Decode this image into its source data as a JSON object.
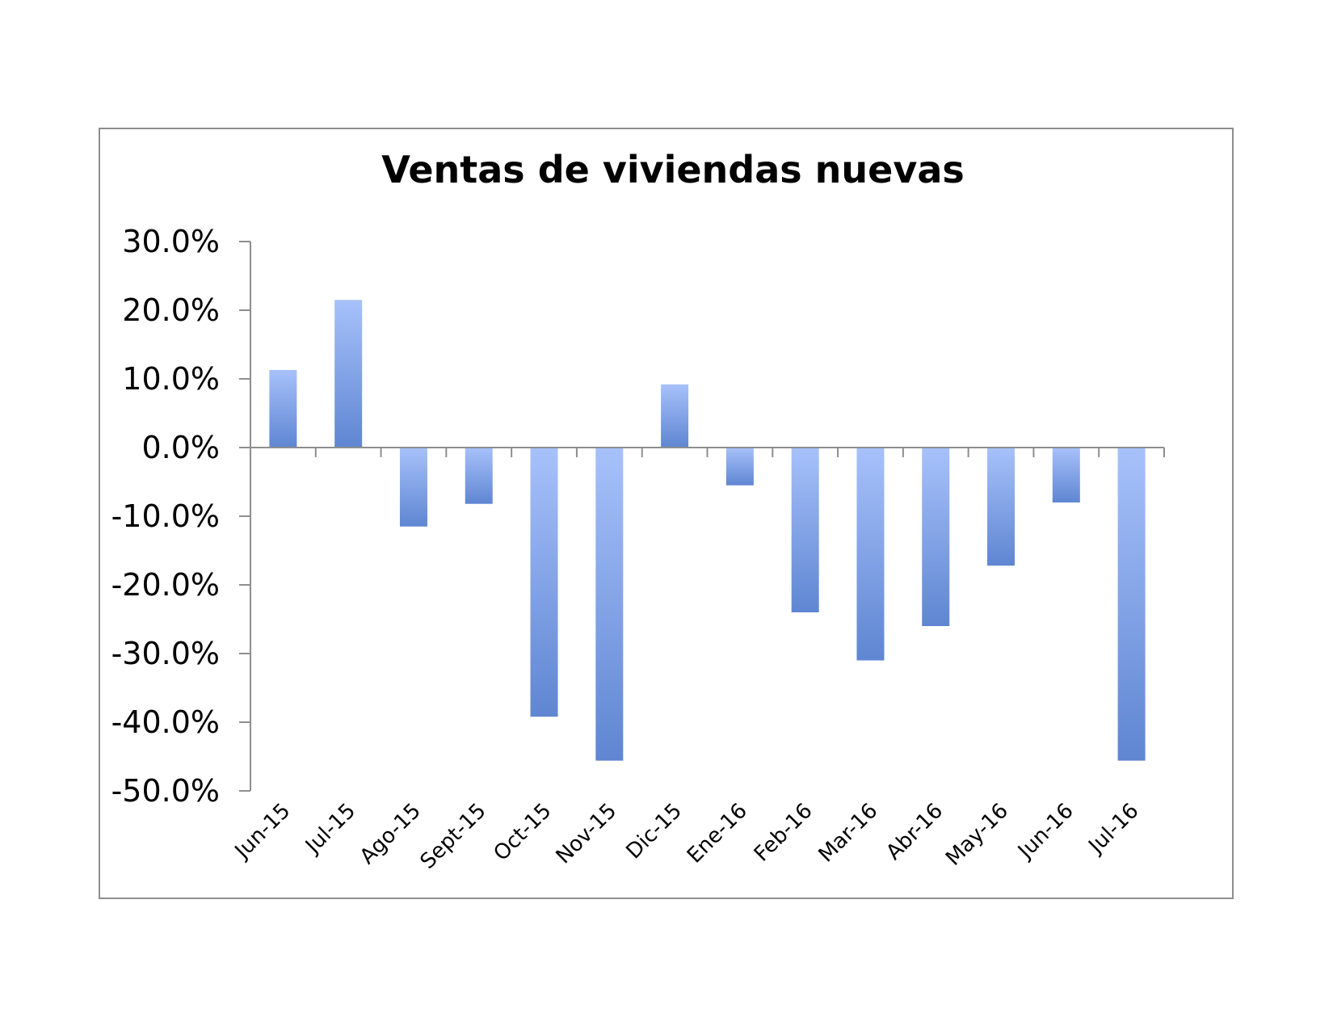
{
  "chart_data": {
    "type": "bar",
    "title": "Ventas de viviendas nuevas",
    "xlabel": "",
    "ylabel": "",
    "categories": [
      "Jun-15",
      "Jul-15",
      "Ago-15",
      "Sept-15",
      "Oct-15",
      "Nov-15",
      "Dic-15",
      "Ene-16",
      "Feb-16",
      "Mar-16",
      "Abr-16",
      "May-16",
      "Jun-16",
      "Jul-16"
    ],
    "values": [
      11.3,
      21.5,
      -11.5,
      -8.2,
      -39.2,
      -45.6,
      9.2,
      -5.5,
      -24.0,
      -31.0,
      -26.0,
      -17.2,
      -8.0,
      -45.6
    ],
    "ylim": [
      -50,
      30
    ],
    "yticks": [
      30,
      20,
      10,
      0,
      -10,
      -20,
      -30,
      -40,
      -50
    ],
    "ytick_labels": [
      "30.0%",
      "20.0%",
      "10.0%",
      "0.0%",
      "-10.0%",
      "-20.0%",
      "-30.0%",
      "-40.0%",
      "-50.0%"
    ],
    "grid": false,
    "legend": "none",
    "colors": {
      "bar_light": "#a7c1fa",
      "bar_dark": "#5f86d2",
      "axis": "#8e8e8e",
      "frame": "#8e8e8e"
    }
  }
}
